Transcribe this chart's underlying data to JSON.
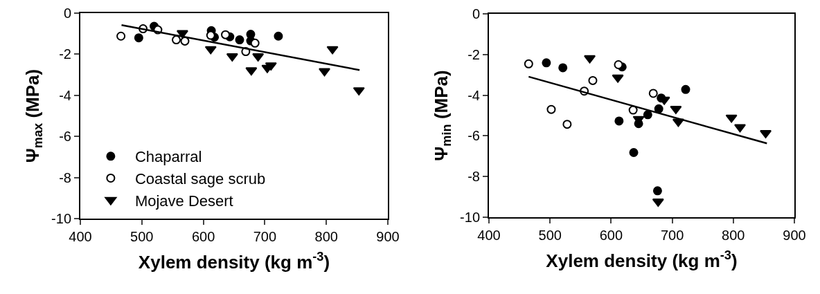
{
  "chart_data": [
    {
      "type": "scatter",
      "xlabel": "Xylem density (kg m$^{-3}$)",
      "ylabel": "Ψ$_{max}$ (MPa)",
      "xlim": [
        400,
        900
      ],
      "xticks": [
        400,
        500,
        600,
        700,
        800,
        900
      ],
      "ylim": [
        -10,
        0
      ],
      "yticks": [
        -10,
        -8,
        -6,
        -4,
        -2,
        0
      ],
      "grid": false,
      "legend": "bottom left",
      "series": [
        {
          "name": "Chaparral",
          "color": "#000000",
          "marker": "circle",
          "x": [
            495,
            520,
            613,
            618,
            643,
            659,
            677,
            677,
            722
          ],
          "values": [
            -1.2,
            -0.64,
            -0.85,
            -1.17,
            -1.15,
            -1.3,
            -1.03,
            -1.35,
            -1.12
          ]
        },
        {
          "name": "Coastal sage scrub",
          "color": "#ffffff",
          "marker": "circle",
          "x": [
            466,
            502,
            526,
            556,
            570,
            612,
            636,
            669,
            684
          ],
          "values": [
            -1.12,
            -0.76,
            -0.81,
            -1.3,
            -1.36,
            -1.08,
            -1.05,
            -1.87,
            -1.46
          ]
        },
        {
          "name": "Mojave Desert",
          "color": "#000000",
          "marker": "triangle",
          "x": [
            566,
            612,
            647,
            678,
            689,
            704,
            710,
            797,
            810,
            853
          ],
          "values": [
            -0.97,
            -1.75,
            -2.1,
            -2.78,
            -2.1,
            -2.66,
            -2.54,
            -2.82,
            -1.75,
            -3.75
          ]
        },
        {
          "type": "line",
          "color": "#000000",
          "marker": "none",
          "line_style": "solid",
          "x": [
            467,
            854
          ],
          "values": [
            -0.58,
            -2.77
          ]
        }
      ]
    },
    {
      "type": "scatter",
      "xlabel": "Xylem density (kg m$^{-3}$)",
      "ylabel": "Ψ$_{min}$ (MPa)",
      "xlim": [
        400,
        900
      ],
      "xticks": [
        400,
        500,
        600,
        700,
        800,
        900
      ],
      "ylim": [
        -10,
        0
      ],
      "yticks": [
        -10,
        -8,
        -6,
        -4,
        -2,
        0
      ],
      "grid": false,
      "legend": false,
      "series": [
        {
          "color": "#000000",
          "marker": "circle",
          "x": [
            494,
            521,
            618,
            613,
            645,
            660,
            678,
            637,
            676,
            722,
            682
          ],
          "values": [
            -2.41,
            -2.65,
            -2.61,
            -5.27,
            -5.4,
            -4.96,
            -4.67,
            -6.82,
            -8.7,
            -3.72,
            -4.14
          ]
        },
        {
          "color": "#ffffff",
          "marker": "circle",
          "x": [
            465,
            502,
            528,
            556,
            570,
            612,
            636,
            669
          ],
          "values": [
            -2.46,
            -4.7,
            -5.43,
            -3.8,
            -3.28,
            -2.5,
            -4.73,
            -3.91
          ]
        },
        {
          "color": "#000000",
          "marker": "triangle",
          "x": [
            565,
            611,
            645,
            687,
            706,
            710,
            797,
            811,
            853,
            677
          ],
          "values": [
            -2.18,
            -3.13,
            -5.17,
            -4.22,
            -4.67,
            -5.3,
            -5.1,
            -5.57,
            -5.86,
            -9.23
          ]
        },
        {
          "type": "line",
          "color": "#000000",
          "marker": "none",
          "line_style": "solid",
          "x": [
            465,
            855
          ],
          "values": [
            -3.09,
            -6.37
          ]
        }
      ]
    }
  ]
}
